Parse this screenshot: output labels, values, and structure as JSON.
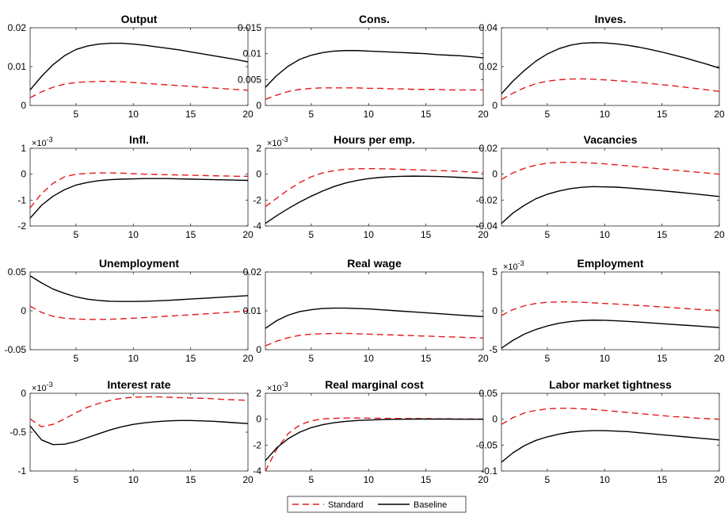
{
  "legend": {
    "entries": [
      {
        "label": "Standard",
        "color": "#e41a1c",
        "style": "dashed"
      },
      {
        "label": "Baseline",
        "color": "#000000",
        "style": "solid"
      }
    ]
  },
  "colors": {
    "standard": "#e41a1c",
    "baseline": "#000000"
  },
  "chart_data": [
    {
      "type": "line",
      "title": "Output",
      "exponent": "",
      "xlim": [
        1,
        20
      ],
      "ylim": [
        0,
        0.02
      ],
      "xticks": [
        5,
        10,
        15,
        20
      ],
      "yticks": [
        0,
        0.01,
        0.02
      ],
      "ytick_labels": [
        "0",
        "0.01",
        "0.02"
      ],
      "x": [
        1,
        2,
        3,
        4,
        5,
        6,
        7,
        8,
        9,
        10,
        11,
        12,
        13,
        14,
        15,
        16,
        17,
        18,
        19,
        20
      ],
      "series": [
        {
          "name": "Standard",
          "values": [
            0.002,
            0.0035,
            0.0047,
            0.0055,
            0.0059,
            0.0061,
            0.0062,
            0.0062,
            0.0061,
            0.0059,
            0.0057,
            0.0055,
            0.0053,
            0.0051,
            0.0049,
            0.0047,
            0.0045,
            0.0043,
            0.0041,
            0.0039
          ]
        },
        {
          "name": "Baseline",
          "values": [
            0.004,
            0.0075,
            0.0105,
            0.0128,
            0.0144,
            0.0153,
            0.0158,
            0.016,
            0.016,
            0.0158,
            0.0155,
            0.0151,
            0.0147,
            0.0143,
            0.0138,
            0.0133,
            0.0128,
            0.0123,
            0.0118,
            0.0112
          ]
        }
      ]
    },
    {
      "type": "line",
      "title": "Cons.",
      "exponent": "",
      "xlim": [
        1,
        20
      ],
      "ylim": [
        0,
        0.015
      ],
      "xticks": [
        5,
        10,
        15,
        20
      ],
      "yticks": [
        0,
        0.005,
        0.01,
        0.015
      ],
      "ytick_labels": [
        "0",
        "0.005",
        "0.01",
        "0.015"
      ],
      "x": [
        1,
        2,
        3,
        4,
        5,
        6,
        7,
        8,
        9,
        10,
        11,
        12,
        13,
        14,
        15,
        16,
        17,
        18,
        19,
        20
      ],
      "series": [
        {
          "name": "Standard",
          "values": [
            0.0012,
            0.002,
            0.0027,
            0.0031,
            0.0033,
            0.0034,
            0.0034,
            0.0034,
            0.0034,
            0.0033,
            0.0033,
            0.0032,
            0.0032,
            0.0031,
            0.0031,
            0.0031,
            0.003,
            0.003,
            0.003,
            0.003
          ]
        },
        {
          "name": "Baseline",
          "values": [
            0.0035,
            0.0058,
            0.0076,
            0.0089,
            0.0097,
            0.0102,
            0.0105,
            0.0106,
            0.0106,
            0.0105,
            0.0104,
            0.0103,
            0.0102,
            0.0101,
            0.01,
            0.0098,
            0.0097,
            0.0096,
            0.0094,
            0.0092
          ]
        }
      ]
    },
    {
      "type": "line",
      "title": "Inves.",
      "exponent": "",
      "xlim": [
        1,
        20
      ],
      "ylim": [
        0,
        0.04
      ],
      "xticks": [
        5,
        10,
        15,
        20
      ],
      "yticks": [
        0,
        0.02,
        0.04
      ],
      "ytick_labels": [
        "0",
        "0.02",
        "0.04"
      ],
      "x": [
        1,
        2,
        3,
        4,
        5,
        6,
        7,
        8,
        9,
        10,
        11,
        12,
        13,
        14,
        15,
        16,
        17,
        18,
        19,
        20
      ],
      "series": [
        {
          "name": "Standard",
          "values": [
            0.003,
            0.0063,
            0.0091,
            0.0112,
            0.0125,
            0.0132,
            0.0136,
            0.0137,
            0.0135,
            0.0132,
            0.0128,
            0.0124,
            0.0119,
            0.0113,
            0.0107,
            0.0101,
            0.0094,
            0.0087,
            0.008,
            0.0072
          ]
        },
        {
          "name": "Baseline",
          "values": [
            0.006,
            0.0125,
            0.018,
            0.0228,
            0.0265,
            0.0292,
            0.031,
            0.032,
            0.0323,
            0.0322,
            0.0317,
            0.031,
            0.03,
            0.0288,
            0.0275,
            0.026,
            0.0245,
            0.0228,
            0.0211,
            0.0192
          ]
        }
      ]
    },
    {
      "type": "line",
      "title": "Infl.",
      "exponent": "×10",
      "exponent_power": "-3",
      "xlim": [
        1,
        20
      ],
      "ylim": [
        -2,
        1
      ],
      "xticks": [
        5,
        10,
        15,
        20
      ],
      "yticks": [
        -2,
        -1,
        0,
        1
      ],
      "ytick_labels": [
        "-2",
        "-1",
        "0",
        "1"
      ],
      "x": [
        1,
        2,
        3,
        4,
        5,
        6,
        7,
        8,
        9,
        10,
        11,
        12,
        13,
        14,
        15,
        16,
        17,
        18,
        19,
        20
      ],
      "series": [
        {
          "name": "Standard",
          "values": [
            -1.3,
            -0.75,
            -0.35,
            -0.1,
            0,
            0.03,
            0.05,
            0.05,
            0.04,
            0.02,
            0,
            -0.01,
            -0.02,
            -0.03,
            -0.04,
            -0.05,
            -0.06,
            -0.07,
            -0.08,
            -0.08
          ]
        },
        {
          "name": "Baseline",
          "values": [
            -1.7,
            -1.2,
            -0.85,
            -0.6,
            -0.42,
            -0.32,
            -0.25,
            -0.21,
            -0.19,
            -0.18,
            -0.17,
            -0.17,
            -0.17,
            -0.18,
            -0.19,
            -0.2,
            -0.21,
            -0.22,
            -0.23,
            -0.24
          ]
        }
      ]
    },
    {
      "type": "line",
      "title": "Hours per emp.",
      "exponent": "×10",
      "exponent_power": "-3",
      "xlim": [
        1,
        20
      ],
      "ylim": [
        -4,
        2
      ],
      "xticks": [
        5,
        10,
        15,
        20
      ],
      "yticks": [
        -4,
        -2,
        0,
        2
      ],
      "ytick_labels": [
        "-4",
        "-2",
        "0",
        "2"
      ],
      "x": [
        1,
        2,
        3,
        4,
        5,
        6,
        7,
        8,
        9,
        10,
        11,
        12,
        13,
        14,
        15,
        16,
        17,
        18,
        19,
        20
      ],
      "series": [
        {
          "name": "Standard",
          "values": [
            -2.5,
            -1.85,
            -1.2,
            -0.65,
            -0.2,
            0.1,
            0.28,
            0.38,
            0.42,
            0.43,
            0.42,
            0.4,
            0.37,
            0.34,
            0.31,
            0.28,
            0.25,
            0.21,
            0.17,
            0.13
          ]
        },
        {
          "name": "Baseline",
          "values": [
            -3.8,
            -3.2,
            -2.65,
            -2.15,
            -1.7,
            -1.3,
            -0.95,
            -0.68,
            -0.48,
            -0.34,
            -0.25,
            -0.19,
            -0.16,
            -0.15,
            -0.16,
            -0.18,
            -0.21,
            -0.25,
            -0.29,
            -0.33
          ]
        }
      ]
    },
    {
      "type": "line",
      "title": "Vacancies",
      "exponent": "",
      "xlim": [
        1,
        20
      ],
      "ylim": [
        -0.04,
        0.02
      ],
      "xticks": [
        5,
        10,
        15,
        20
      ],
      "yticks": [
        -0.04,
        -0.02,
        0,
        0.02
      ],
      "ytick_labels": [
        "-0.04",
        "-0.02",
        "0",
        "0.02"
      ],
      "x": [
        1,
        2,
        3,
        4,
        5,
        6,
        7,
        8,
        9,
        10,
        11,
        12,
        13,
        14,
        15,
        16,
        17,
        18,
        19,
        20
      ],
      "series": [
        {
          "name": "Standard",
          "values": [
            -0.004,
            0.001,
            0.0045,
            0.007,
            0.0085,
            0.0091,
            0.0092,
            0.009,
            0.0086,
            0.008,
            0.0072,
            0.0064,
            0.0056,
            0.0048,
            0.004,
            0.0032,
            0.0024,
            0.0016,
            0.0008,
            0
          ]
        },
        {
          "name": "Baseline",
          "values": [
            -0.038,
            -0.03,
            -0.024,
            -0.019,
            -0.0155,
            -0.013,
            -0.0112,
            -0.0101,
            -0.0096,
            -0.0098,
            -0.01,
            -0.0106,
            -0.0113,
            -0.012,
            -0.0128,
            -0.0136,
            -0.0145,
            -0.0154,
            -0.0163,
            -0.0172
          ]
        }
      ]
    },
    {
      "type": "line",
      "title": "Unemployment",
      "exponent": "",
      "xlim": [
        1,
        20
      ],
      "ylim": [
        -0.05,
        0.05
      ],
      "xticks": [
        5,
        10,
        15,
        20
      ],
      "yticks": [
        -0.05,
        0,
        0.05
      ],
      "ytick_labels": [
        "-0.05",
        "0",
        "0.05"
      ],
      "x": [
        1,
        2,
        3,
        4,
        5,
        6,
        7,
        8,
        9,
        10,
        11,
        12,
        13,
        14,
        15,
        16,
        17,
        18,
        19,
        20
      ],
      "series": [
        {
          "name": "Standard",
          "values": [
            0.006,
            -0.002,
            -0.007,
            -0.0095,
            -0.0105,
            -0.011,
            -0.0111,
            -0.0108,
            -0.0102,
            -0.0095,
            -0.0087,
            -0.0078,
            -0.0069,
            -0.006,
            -0.0051,
            -0.0042,
            -0.0032,
            -0.0022,
            -0.0012,
            -0.0003
          ]
        },
        {
          "name": "Baseline",
          "values": [
            0.045,
            0.036,
            0.028,
            0.0225,
            0.018,
            0.015,
            0.0133,
            0.0123,
            0.0121,
            0.0121,
            0.0123,
            0.0128,
            0.0135,
            0.0143,
            0.0152,
            0.016,
            0.0169,
            0.0178,
            0.0187,
            0.0196
          ]
        }
      ]
    },
    {
      "type": "line",
      "title": "Real wage",
      "exponent": "",
      "xlim": [
        1,
        20
      ],
      "ylim": [
        0,
        0.02
      ],
      "xticks": [
        5,
        10,
        15,
        20
      ],
      "yticks": [
        0,
        0.01,
        0.02
      ],
      "ytick_labels": [
        "0",
        "0.01",
        "0.02"
      ],
      "x": [
        1,
        2,
        3,
        4,
        5,
        6,
        7,
        8,
        9,
        10,
        11,
        12,
        13,
        14,
        15,
        16,
        17,
        18,
        19,
        20
      ],
      "series": [
        {
          "name": "Standard",
          "values": [
            0.001,
            0.0022,
            0.0031,
            0.0037,
            0.004,
            0.0041,
            0.0042,
            0.0042,
            0.0041,
            0.004,
            0.0039,
            0.0038,
            0.0037,
            0.0036,
            0.0035,
            0.0034,
            0.0033,
            0.0032,
            0.0031,
            0.003
          ]
        },
        {
          "name": "Baseline",
          "values": [
            0.0055,
            0.0075,
            0.0089,
            0.0098,
            0.0103,
            0.0106,
            0.0107,
            0.0107,
            0.0106,
            0.0105,
            0.0103,
            0.0101,
            0.0099,
            0.0097,
            0.0095,
            0.0093,
            0.0091,
            0.0089,
            0.0087,
            0.0085
          ]
        }
      ]
    },
    {
      "type": "line",
      "title": "Employment",
      "exponent": "×10",
      "exponent_power": "-3",
      "xlim": [
        1,
        20
      ],
      "ylim": [
        -5,
        5
      ],
      "xticks": [
        5,
        10,
        15,
        20
      ],
      "yticks": [
        -5,
        0,
        5
      ],
      "ytick_labels": [
        "-5",
        "0",
        "5"
      ],
      "x": [
        1,
        2,
        3,
        4,
        5,
        6,
        7,
        8,
        9,
        10,
        11,
        12,
        13,
        14,
        15,
        16,
        17,
        18,
        19,
        20
      ],
      "series": [
        {
          "name": "Standard",
          "values": [
            -0.6,
            0.15,
            0.65,
            0.95,
            1.1,
            1.15,
            1.15,
            1.1,
            1.03,
            0.95,
            0.87,
            0.78,
            0.69,
            0.6,
            0.5,
            0.4,
            0.3,
            0.2,
            0.1,
            0.05
          ]
        },
        {
          "name": "Baseline",
          "values": [
            -4.8,
            -3.8,
            -3.0,
            -2.4,
            -1.95,
            -1.6,
            -1.38,
            -1.25,
            -1.2,
            -1.22,
            -1.28,
            -1.36,
            -1.45,
            -1.55,
            -1.65,
            -1.75,
            -1.85,
            -1.95,
            -2.05,
            -2.15
          ]
        }
      ]
    },
    {
      "type": "line",
      "title": "Interest rate",
      "exponent": "×10",
      "exponent_power": "-3",
      "xlim": [
        1,
        20
      ],
      "ylim": [
        -1,
        0
      ],
      "xticks": [
        5,
        10,
        15,
        20
      ],
      "yticks": [
        -1,
        -0.5,
        0
      ],
      "ytick_labels": [
        "-1",
        "-0.5",
        "0"
      ],
      "x": [
        1,
        2,
        3,
        4,
        5,
        6,
        7,
        8,
        9,
        10,
        11,
        12,
        13,
        14,
        15,
        16,
        17,
        18,
        19,
        20
      ],
      "series": [
        {
          "name": "Standard",
          "values": [
            -0.33,
            -0.43,
            -0.4,
            -0.33,
            -0.25,
            -0.18,
            -0.13,
            -0.09,
            -0.065,
            -0.05,
            -0.045,
            -0.045,
            -0.05,
            -0.055,
            -0.06,
            -0.065,
            -0.07,
            -0.08,
            -0.085,
            -0.09
          ]
        },
        {
          "name": "Baseline",
          "values": [
            -0.42,
            -0.6,
            -0.66,
            -0.655,
            -0.62,
            -0.57,
            -0.52,
            -0.47,
            -0.43,
            -0.4,
            -0.38,
            -0.365,
            -0.355,
            -0.35,
            -0.35,
            -0.355,
            -0.36,
            -0.37,
            -0.38,
            -0.39
          ]
        }
      ]
    },
    {
      "type": "line",
      "title": "Real marginal cost",
      "exponent": "×10",
      "exponent_power": "-3",
      "xlim": [
        1,
        20
      ],
      "ylim": [
        -4,
        2
      ],
      "xticks": [
        5,
        10,
        15,
        20
      ],
      "yticks": [
        -4,
        -2,
        0,
        2
      ],
      "ytick_labels": [
        "-4",
        "-2",
        "0",
        "2"
      ],
      "x": [
        1,
        2,
        3,
        4,
        5,
        6,
        7,
        8,
        9,
        10,
        11,
        12,
        13,
        14,
        15,
        16,
        17,
        18,
        19,
        20
      ],
      "series": [
        {
          "name": "Standard",
          "values": [
            -4.0,
            -2.3,
            -1.1,
            -0.45,
            -0.12,
            0.02,
            0.07,
            0.09,
            0.09,
            0.08,
            0.07,
            0.06,
            0.05,
            0.05,
            0.04,
            0.03,
            0.03,
            0.02,
            0.02,
            0.01
          ]
        },
        {
          "name": "Baseline",
          "values": [
            -3.2,
            -2.2,
            -1.5,
            -1.0,
            -0.65,
            -0.42,
            -0.27,
            -0.17,
            -0.1,
            -0.06,
            -0.03,
            -0.01,
            0,
            0.01,
            0.01,
            0.01,
            0.01,
            0,
            0,
            0
          ]
        }
      ]
    },
    {
      "type": "line",
      "title": "Labor market tightness",
      "exponent": "",
      "xlim": [
        1,
        20
      ],
      "ylim": [
        -0.1,
        0.05
      ],
      "xticks": [
        5,
        10,
        15,
        20
      ],
      "yticks": [
        -0.1,
        -0.05,
        0,
        0.05
      ],
      "ytick_labels": [
        "-0.1",
        "-0.05",
        "0",
        "0.05"
      ],
      "x": [
        1,
        2,
        3,
        4,
        5,
        6,
        7,
        8,
        9,
        10,
        11,
        12,
        13,
        14,
        15,
        16,
        17,
        18,
        19,
        20
      ],
      "series": [
        {
          "name": "Standard",
          "values": [
            -0.01,
            0.003,
            0.012,
            0.017,
            0.02,
            0.021,
            0.021,
            0.02,
            0.019,
            0.017,
            0.015,
            0.013,
            0.011,
            0.009,
            0.007,
            0.005,
            0.004,
            0.002,
            0.001,
            0
          ]
        },
        {
          "name": "Baseline",
          "values": [
            -0.083,
            -0.065,
            -0.051,
            -0.041,
            -0.034,
            -0.029,
            -0.025,
            -0.023,
            -0.022,
            -0.022,
            -0.023,
            -0.024,
            -0.026,
            -0.028,
            -0.03,
            -0.032,
            -0.034,
            -0.036,
            -0.038,
            -0.04
          ]
        }
      ]
    }
  ]
}
